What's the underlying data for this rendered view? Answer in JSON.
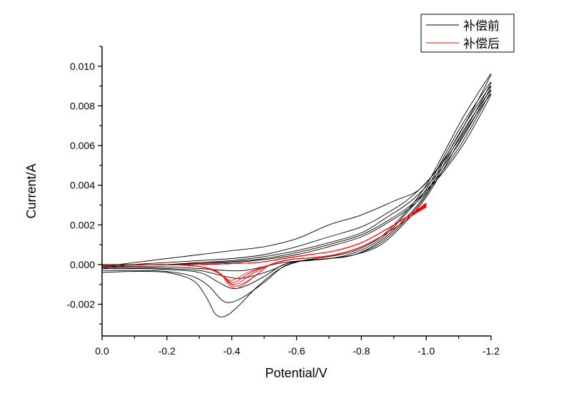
{
  "chart_data": {
    "type": "line",
    "title": "",
    "xlabel": "Potential/V",
    "ylabel": "Current/A",
    "xlim": [
      0.0,
      -1.2
    ],
    "ylim": [
      -0.0036,
      0.011
    ],
    "x_ticks": [
      0.0,
      -0.2,
      -0.4,
      -0.6,
      -0.8,
      -1.0,
      -1.2
    ],
    "x_tick_labels": [
      "0.0",
      "-0.2",
      "-0.4",
      "-0.6",
      "-0.8",
      "-1.0",
      "-1.2"
    ],
    "y_ticks": [
      -0.002,
      0.0,
      0.002,
      0.004,
      0.006,
      0.008,
      0.01
    ],
    "y_tick_labels": [
      "-0.002",
      "0.000",
      "0.002",
      "0.004",
      "0.006",
      "0.008",
      "0.010"
    ],
    "grid": false,
    "legend_position": "top-right",
    "legend": [
      {
        "label": "补偿前",
        "color": "#000000"
      },
      {
        "label": "补偿后",
        "color": "#ff0000"
      }
    ],
    "series": [
      {
        "name": "补偿前",
        "color": "#000000",
        "cycles": [
          {
            "x": [
              0.0,
              -0.1,
              -0.2,
              -0.28,
              -0.32,
              -0.35,
              -0.38,
              -0.42,
              -0.48,
              -0.55,
              -0.62,
              -0.7,
              -0.78,
              -0.86,
              -0.94,
              -1.0,
              -1.06,
              -1.12,
              -1.2,
              -1.12,
              -1.05,
              -0.98,
              -0.9,
              -0.8,
              -0.7,
              -0.6,
              -0.5,
              -0.4,
              -0.3,
              -0.2,
              -0.1,
              0.0
            ],
            "y": [
              -0.0004,
              -0.00035,
              -0.0004,
              -0.0008,
              -0.0016,
              -0.0025,
              -0.0026,
              -0.0021,
              -0.0011,
              -0.0002,
              0.0002,
              0.0004,
              0.0007,
              0.0014,
              0.0027,
              0.004,
              0.0058,
              0.0076,
              0.0096,
              0.0071,
              0.0052,
              0.0038,
              0.0032,
              0.0025,
              0.002,
              0.0013,
              0.0009,
              0.0007,
              0.0005,
              0.0003,
              0.0001,
              -0.0001
            ]
          },
          {
            "x": [
              0.0,
              -0.1,
              -0.2,
              -0.28,
              -0.33,
              -0.37,
              -0.4,
              -0.44,
              -0.5,
              -0.56,
              -0.62,
              -0.7,
              -0.78,
              -0.86,
              -0.94,
              -1.0,
              -1.06,
              -1.12,
              -1.2,
              -1.12,
              -1.04,
              -0.96,
              -0.88,
              -0.8,
              -0.7,
              -0.6,
              -0.5,
              -0.4,
              -0.3,
              -0.2,
              -0.1,
              0.0
            ],
            "y": [
              -0.0003,
              -0.0003,
              -0.00035,
              -0.0006,
              -0.0011,
              -0.0018,
              -0.0019,
              -0.0016,
              -0.0009,
              -0.0001,
              0.0002,
              0.0003,
              0.0006,
              0.0013,
              0.0026,
              0.0038,
              0.0056,
              0.0073,
              0.0092,
              0.0068,
              0.0049,
              0.0035,
              0.0026,
              0.0019,
              0.0014,
              0.0009,
              0.0005,
              0.0003,
              0.0002,
              0.0001,
              0.0,
              -0.0002
            ]
          },
          {
            "x": [
              0.0,
              -0.1,
              -0.2,
              -0.3,
              -0.36,
              -0.4,
              -0.44,
              -0.5,
              -0.56,
              -0.62,
              -0.7,
              -0.78,
              -0.86,
              -0.94,
              -1.0,
              -1.06,
              -1.12,
              -1.2,
              -1.12,
              -1.04,
              -0.96,
              -0.88,
              -0.8,
              -0.7,
              -0.6,
              -0.5,
              -0.4,
              -0.3,
              -0.2,
              -0.1,
              0.0
            ],
            "y": [
              -0.0002,
              -0.0002,
              -0.00025,
              -0.0004,
              -0.0009,
              -0.0012,
              -0.0011,
              -0.0006,
              0.0,
              0.0002,
              0.0003,
              0.0005,
              0.0012,
              0.0024,
              0.0036,
              0.0054,
              0.0071,
              0.009,
              0.0066,
              0.0047,
              0.0033,
              0.0024,
              0.0016,
              0.0011,
              0.0007,
              0.0004,
              0.0002,
              0.0001,
              0.0,
              0.0,
              -0.0001
            ]
          },
          {
            "x": [
              0.0,
              -0.1,
              -0.2,
              -0.3,
              -0.38,
              -0.42,
              -0.46,
              -0.52,
              -0.58,
              -0.64,
              -0.7,
              -0.78,
              -0.86,
              -0.94,
              -1.0,
              -1.06,
              -1.12,
              -1.2,
              -1.12,
              -1.04,
              -0.96,
              -0.88,
              -0.8,
              -0.7,
              -0.6,
              -0.5,
              -0.4,
              -0.3,
              -0.2,
              -0.1,
              0.0
            ],
            "y": [
              -0.00015,
              -0.00015,
              -0.0002,
              -0.0003,
              -0.0006,
              -0.0007,
              -0.0006,
              -0.0003,
              0.0001,
              0.0002,
              0.0003,
              0.0005,
              0.0011,
              0.0023,
              0.0035,
              0.0052,
              0.0069,
              0.0088,
              0.0064,
              0.0045,
              0.0031,
              0.0022,
              0.0015,
              0.001,
              0.0006,
              0.0003,
              0.00015,
              0.0001,
              0.0,
              0.0,
              -5e-05
            ]
          },
          {
            "x": [
              0.0,
              -0.1,
              -0.2,
              -0.3,
              -0.38,
              -0.44,
              -0.5,
              -0.56,
              -0.62,
              -0.7,
              -0.78,
              -0.86,
              -0.94,
              -1.0,
              -1.06,
              -1.12,
              -1.2,
              -1.12,
              -1.04,
              -0.96,
              -0.88,
              -0.8,
              -0.7,
              -0.6,
              -0.5,
              -0.4,
              -0.3,
              -0.2,
              -0.1,
              0.0
            ],
            "y": [
              -0.0001,
              -0.0001,
              -0.00012,
              -0.0002,
              -0.0003,
              -0.0003,
              -0.0001,
              0.0001,
              0.0002,
              0.0003,
              0.0005,
              0.001,
              0.0022,
              0.0034,
              0.005,
              0.0067,
              0.0086,
              0.0062,
              0.0044,
              0.003,
              0.0021,
              0.0014,
              0.0009,
              0.0005,
              0.00025,
              0.0001,
              5e-05,
              0.0,
              0.0,
              0.0
            ]
          }
        ]
      },
      {
        "name": "补偿后",
        "color": "#ff0000",
        "cycles": [
          {
            "x": [
              0.0,
              -0.1,
              -0.2,
              -0.3,
              -0.36,
              -0.39,
              -0.41,
              -0.43,
              -0.47,
              -0.52,
              -0.58,
              -0.65,
              -0.72,
              -0.8,
              -0.88,
              -0.95,
              -1.0,
              -0.95,
              -0.88,
              -0.8,
              -0.72,
              -0.64,
              -0.56,
              -0.48,
              -0.4,
              -0.3,
              -0.2,
              -0.1,
              0.0
            ],
            "y": [
              -5e-05,
              -2e-05,
              0.0,
              -0.0001,
              -0.0004,
              -0.001,
              -0.0012,
              -0.0011,
              -0.0006,
              0.0,
              0.00025,
              0.00035,
              0.0005,
              0.0009,
              0.0016,
              0.0024,
              0.0031,
              0.0025,
              0.0018,
              0.0011,
              0.0007,
              0.0005,
              0.0003,
              0.0001,
              5e-05,
              0.0,
              -2e-05,
              -3e-05,
              -5e-05
            ]
          },
          {
            "x": [
              0.0,
              -0.1,
              -0.2,
              -0.3,
              -0.36,
              -0.39,
              -0.41,
              -0.43,
              -0.47,
              -0.52,
              -0.58,
              -0.65,
              -0.72,
              -0.8,
              -0.88,
              -0.95,
              -1.0,
              -0.95,
              -0.88,
              -0.8,
              -0.72,
              -0.64,
              -0.56,
              -0.48,
              -0.4,
              -0.3,
              -0.2,
              -0.1,
              0.0
            ],
            "y": [
              -5e-05,
              -2e-05,
              0.0,
              -0.0001,
              -0.0004,
              -0.0009,
              -0.0011,
              -0.001,
              -0.0006,
              0.0,
              0.00025,
              0.00035,
              0.0005,
              0.0009,
              0.0016,
              0.0024,
              0.00305,
              0.0025,
              0.0018,
              0.0011,
              0.0007,
              0.0005,
              0.0003,
              0.0001,
              5e-05,
              0.0,
              -2e-05,
              -3e-05,
              -5e-05
            ]
          },
          {
            "x": [
              0.0,
              -0.1,
              -0.2,
              -0.3,
              -0.36,
              -0.385,
              -0.405,
              -0.425,
              -0.46,
              -0.52,
              -0.58,
              -0.65,
              -0.72,
              -0.8,
              -0.88,
              -0.95,
              -1.0,
              -0.95,
              -0.88,
              -0.8,
              -0.72,
              -0.64,
              -0.56,
              -0.48,
              -0.4,
              -0.3,
              -0.2,
              -0.1,
              0.0
            ],
            "y": [
              -5e-05,
              -2e-05,
              0.0,
              -0.0001,
              -0.0004,
              -0.0008,
              -0.001,
              -0.0009,
              -0.0005,
              0.0,
              0.00025,
              0.00035,
              0.0005,
              0.0009,
              0.0016,
              0.0024,
              0.003,
              0.0025,
              0.0018,
              0.0011,
              0.0007,
              0.0005,
              0.0003,
              0.0001,
              5e-05,
              0.0,
              -2e-05,
              -3e-05,
              -5e-05
            ]
          },
          {
            "x": [
              0.0,
              -0.1,
              -0.2,
              -0.3,
              -0.355,
              -0.38,
              -0.4,
              -0.42,
              -0.46,
              -0.52,
              -0.58,
              -0.65,
              -0.72,
              -0.8,
              -0.88,
              -0.95,
              -1.0,
              -0.95,
              -0.88,
              -0.8,
              -0.72,
              -0.64,
              -0.56,
              -0.48,
              -0.4,
              -0.3,
              -0.2,
              -0.1,
              0.0
            ],
            "y": [
              -5e-05,
              -2e-05,
              0.0,
              -0.0001,
              -0.0004,
              -0.0007,
              -0.0009,
              -0.0008,
              -0.0004,
              0.0,
              0.00025,
              0.00035,
              0.0005,
              0.0009,
              0.0016,
              0.0024,
              0.00295,
              0.0025,
              0.0018,
              0.0011,
              0.0007,
              0.0005,
              0.0003,
              0.0001,
              5e-05,
              0.0,
              -2e-05,
              -3e-05,
              -5e-05
            ]
          },
          {
            "x": [
              0.0,
              -0.1,
              -0.2,
              -0.3,
              -0.35,
              -0.375,
              -0.395,
              -0.415,
              -0.45,
              -0.52,
              -0.58,
              -0.65,
              -0.72,
              -0.8,
              -0.88,
              -0.95,
              -1.0,
              -0.95,
              -0.88,
              -0.8,
              -0.72,
              -0.64,
              -0.56,
              -0.48,
              -0.4,
              -0.3,
              -0.2,
              -0.1,
              0.0
            ],
            "y": [
              -5e-05,
              -2e-05,
              0.0,
              -0.0001,
              -0.0003,
              -0.0006,
              -0.0008,
              -0.0007,
              -0.0004,
              0.0,
              0.00025,
              0.00035,
              0.0005,
              0.0009,
              0.0016,
              0.0024,
              0.0029,
              0.0025,
              0.0018,
              0.0011,
              0.0007,
              0.0005,
              0.0003,
              0.0001,
              5e-05,
              0.0,
              -2e-05,
              -3e-05,
              -5e-05
            ]
          }
        ]
      }
    ]
  }
}
